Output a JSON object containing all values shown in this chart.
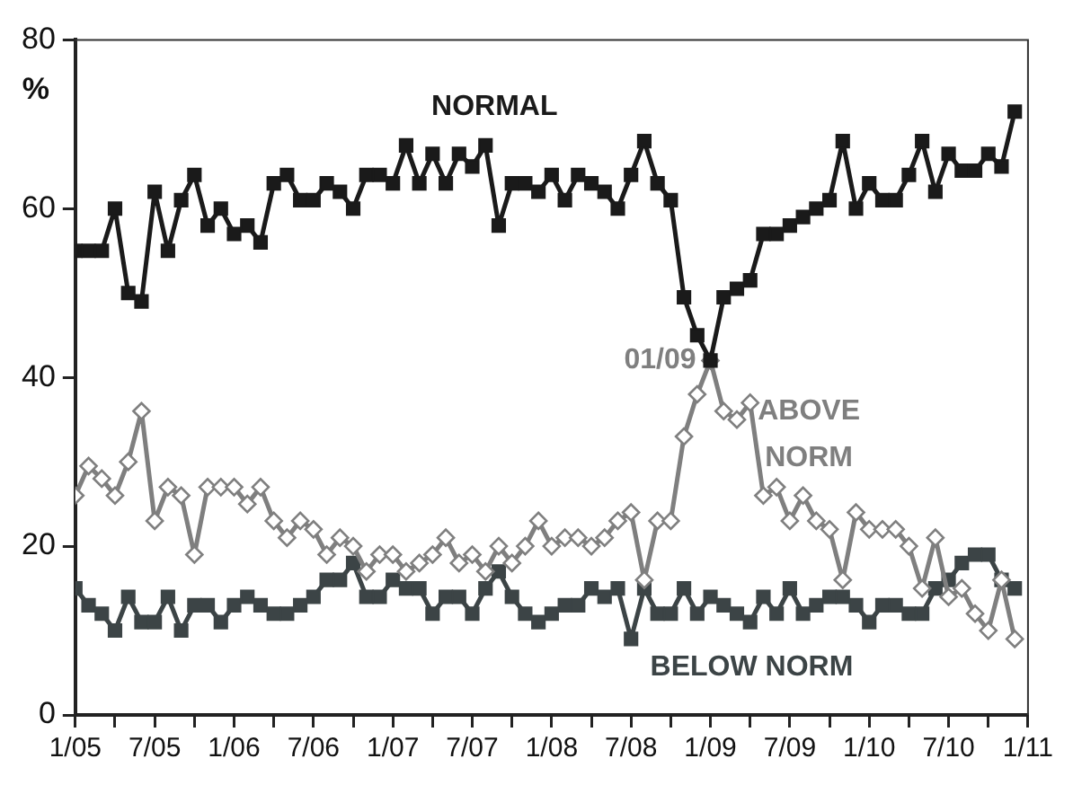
{
  "chart_data": {
    "type": "line",
    "ylabel": "%",
    "xlim": [
      "2005-01",
      "2011-01"
    ],
    "xticks": [
      {
        "value": "2005-01",
        "label": "1/05"
      },
      {
        "value": "2005-04",
        "label": null
      },
      {
        "value": "2005-07",
        "label": "7/05"
      },
      {
        "value": "2005-10",
        "label": null
      },
      {
        "value": "2006-01",
        "label": "1/06"
      },
      {
        "value": "2006-04",
        "label": null
      },
      {
        "value": "2006-07",
        "label": "7/06"
      },
      {
        "value": "2006-10",
        "label": null
      },
      {
        "value": "2007-01",
        "label": "1/07"
      },
      {
        "value": "2007-04",
        "label": null
      },
      {
        "value": "2007-07",
        "label": "7/07"
      },
      {
        "value": "2007-10",
        "label": null
      },
      {
        "value": "2008-01",
        "label": "1/08"
      },
      {
        "value": "2008-04",
        "label": null
      },
      {
        "value": "2008-07",
        "label": "7/08"
      },
      {
        "value": "2008-10",
        "label": null
      },
      {
        "value": "2009-01",
        "label": "1/09"
      },
      {
        "value": "2009-04",
        "label": null
      },
      {
        "value": "2009-07",
        "label": "7/09"
      },
      {
        "value": "2009-10",
        "label": null
      },
      {
        "value": "2010-01",
        "label": "1/10"
      },
      {
        "value": "2010-04",
        "label": null
      },
      {
        "value": "2010-07",
        "label": "7/10"
      },
      {
        "value": "2010-10",
        "label": null
      },
      {
        "value": "2011-01",
        "label": "1/11"
      }
    ],
    "ylim": [
      0,
      80
    ],
    "yticks": [
      0,
      20,
      40,
      60,
      80
    ],
    "grid": false,
    "legend": false,
    "line_style": "solid",
    "x": [
      "2005-01",
      "2005-02",
      "2005-03",
      "2005-04",
      "2005-05",
      "2005-06",
      "2005-07",
      "2005-08",
      "2005-09",
      "2005-10",
      "2005-11",
      "2005-12",
      "2006-01",
      "2006-02",
      "2006-03",
      "2006-04",
      "2006-05",
      "2006-06",
      "2006-07",
      "2006-08",
      "2006-09",
      "2006-10",
      "2006-11",
      "2006-12",
      "2007-01",
      "2007-02",
      "2007-03",
      "2007-04",
      "2007-05",
      "2007-06",
      "2007-07",
      "2007-08",
      "2007-09",
      "2007-10",
      "2007-11",
      "2007-12",
      "2008-01",
      "2008-02",
      "2008-03",
      "2008-04",
      "2008-05",
      "2008-06",
      "2008-07",
      "2008-08",
      "2008-09",
      "2008-10",
      "2008-11",
      "2008-12",
      "2009-01",
      "2009-02",
      "2009-03",
      "2009-04",
      "2009-05",
      "2009-06",
      "2009-07",
      "2009-08",
      "2009-09",
      "2009-10",
      "2009-11",
      "2009-12",
      "2010-01",
      "2010-02",
      "2010-03",
      "2010-04",
      "2010-05",
      "2010-06",
      "2010-07",
      "2010-08",
      "2010-09",
      "2010-10",
      "2010-11",
      "2010-12"
    ],
    "series": [
      {
        "name": "NORMAL",
        "color": "#1a1a1a",
        "marker": "square",
        "values": [
          55,
          55,
          55,
          60,
          50,
          49,
          62,
          55,
          61,
          64,
          58,
          60,
          57,
          58,
          56,
          63,
          64,
          61,
          61,
          63,
          62,
          60,
          64,
          64,
          63,
          67.5,
          63,
          66.5,
          63,
          66.5,
          65,
          67.5,
          58,
          63,
          63,
          62,
          64,
          61,
          64,
          63,
          62,
          60,
          64,
          68,
          63,
          61,
          49.5,
          45,
          42,
          49.5,
          50.5,
          51.5,
          57,
          57,
          58,
          59,
          60,
          61,
          68,
          60,
          63,
          61,
          61,
          64,
          68,
          62,
          66.5,
          64.5,
          64.5,
          66.5,
          65,
          71.5
        ]
      },
      {
        "name": "ABOVE NORM",
        "color": "#7f7f7f",
        "marker": "diamond",
        "values": [
          26,
          29.5,
          28,
          26,
          30,
          36,
          23,
          27,
          26,
          19,
          27,
          27,
          27,
          25,
          27,
          23,
          21,
          23,
          22,
          19,
          21,
          20,
          17,
          19,
          19,
          17,
          18,
          19,
          21,
          18,
          19,
          17,
          20,
          18,
          20,
          23,
          20,
          21,
          21,
          20,
          21,
          23,
          24,
          16,
          23,
          23,
          33,
          38,
          42,
          36,
          35,
          37,
          26,
          27,
          23,
          26,
          23,
          22,
          16,
          24,
          22,
          22,
          22,
          20,
          15,
          21,
          14,
          15,
          12,
          10,
          16,
          9
        ]
      },
      {
        "name": "BELOW NORM",
        "color": "#3c4446",
        "marker": "square",
        "values": [
          15,
          13,
          12,
          10,
          14,
          11,
          11,
          14,
          10,
          13,
          13,
          11,
          13,
          14,
          13,
          12,
          12,
          13,
          14,
          16,
          16,
          18,
          14,
          14,
          16,
          15,
          15,
          12,
          14,
          14,
          12,
          15,
          17,
          14,
          12,
          11,
          12,
          13,
          13,
          15,
          14,
          15,
          9,
          15,
          12,
          12,
          15,
          12,
          14,
          13,
          12,
          11,
          14,
          12,
          15,
          12,
          13,
          14,
          14,
          13,
          11,
          13,
          13,
          12,
          12,
          15,
          16,
          18,
          19,
          19,
          16,
          15
        ]
      }
    ],
    "annotations": [
      {
        "text": "01/09",
        "x": "2009-01",
        "y": 42
      }
    ]
  }
}
